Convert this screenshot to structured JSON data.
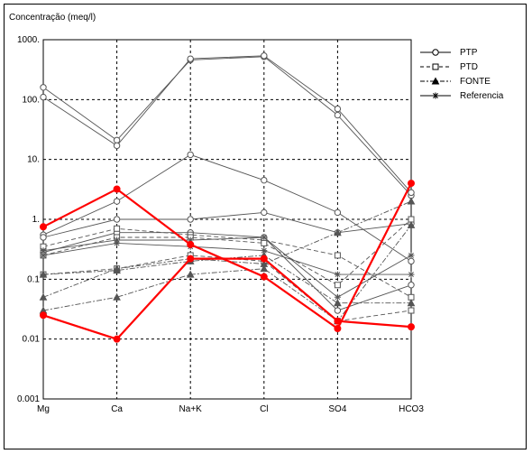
{
  "chart_data": {
    "type": "line",
    "title": "Concentração (meq/l)",
    "xlabel": "",
    "ylabel": "",
    "yscale": "log",
    "ylim": [
      0.001,
      1000
    ],
    "grid": true,
    "legend_placement": "top-right",
    "categories": [
      "Mg",
      "Ca",
      "Na+K",
      "Cl",
      "SO4",
      "HCO3"
    ],
    "ytick_labels": [
      "1000.",
      "100.",
      "10.",
      "1.",
      "0.1",
      "0.01",
      "0.001"
    ],
    "ytick_values": [
      1000,
      100,
      10,
      1,
      0.1,
      0.01,
      0.001
    ],
    "legend": [
      {
        "label": "PTP",
        "marker": "circle",
        "dash": "solid"
      },
      {
        "label": "PTD",
        "marker": "square",
        "dash": "dashed"
      },
      {
        "label": "FONTE",
        "marker": "triangle",
        "dash": "dashdot"
      },
      {
        "label": "Referencia",
        "marker": "star",
        "dash": "solid"
      }
    ],
    "highlight_color": "#ff0000",
    "series_color": "#555555",
    "series": [
      {
        "group": "PTP",
        "values": [
          160,
          21,
          460,
          520,
          55,
          2.5
        ]
      },
      {
        "group": "PTP",
        "values": [
          110,
          17,
          480,
          540,
          70,
          2.8
        ]
      },
      {
        "group": "PTP",
        "values": [
          0.55,
          2.0,
          12,
          4.5,
          1.3,
          0.2
        ]
      },
      {
        "group": "PTP",
        "values": [
          0.5,
          1.0,
          1.0,
          1.3,
          0.6,
          0.85
        ]
      },
      {
        "group": "PTP",
        "values": [
          0.28,
          0.6,
          0.6,
          0.5,
          0.03,
          0.08
        ]
      },
      {
        "group": "PTD",
        "values": [
          0.35,
          0.7,
          0.55,
          0.45,
          0.25,
          0.05
        ]
      },
      {
        "group": "PTD",
        "values": [
          0.25,
          0.5,
          0.5,
          0.4,
          0.08,
          1.0
        ]
      },
      {
        "group": "PTD",
        "values": [
          0.12,
          0.15,
          0.25,
          0.2,
          0.02,
          0.03
        ]
      },
      {
        "group": "FONTE",
        "values": [
          0.05,
          0.15,
          0.22,
          0.18,
          0.6,
          2.0
        ]
      },
      {
        "group": "FONTE",
        "values": [
          0.03,
          0.05,
          0.12,
          0.15,
          0.02,
          0.8
        ]
      },
      {
        "group": "FONTE",
        "values": [
          0.12,
          0.14,
          0.2,
          0.25,
          0.04,
          0.04
        ]
      },
      {
        "group": "Referencia",
        "values": [
          0.25,
          0.4,
          0.35,
          0.3,
          0.12,
          0.12
        ]
      },
      {
        "group": "Referencia",
        "values": [
          0.3,
          0.45,
          0.45,
          0.5,
          0.05,
          0.25
        ]
      },
      {
        "group": "highlight",
        "values": [
          0.75,
          3.2,
          0.38,
          0.11,
          0.015,
          4.0
        ]
      },
      {
        "group": "highlight",
        "values": [
          0.025,
          0.01,
          0.22,
          0.22,
          0.02,
          0.016
        ]
      }
    ]
  }
}
